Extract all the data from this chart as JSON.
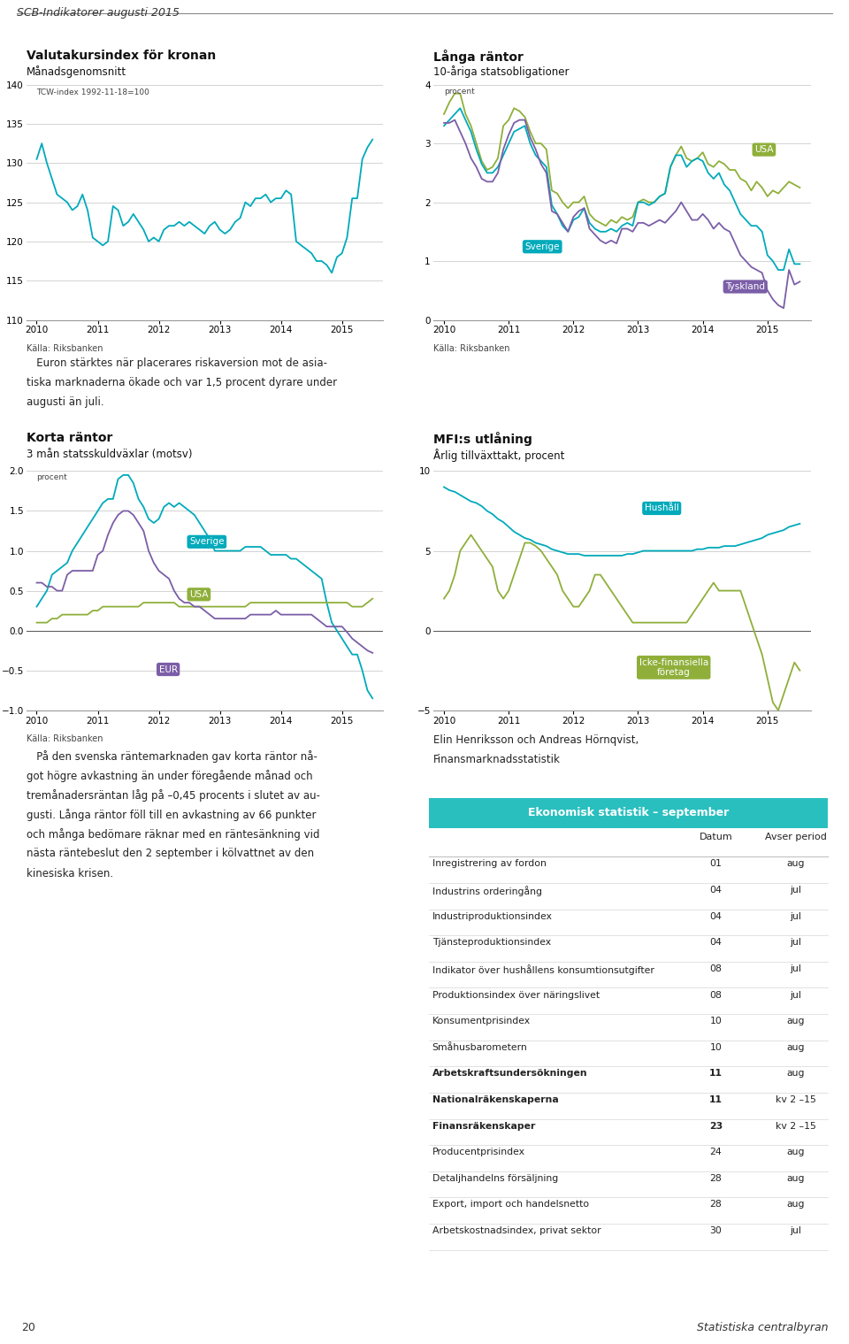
{
  "page_title": "SCB-Indikatorer augusti 2015",
  "page_num_left": "20",
  "page_num_right": "Statistiska centralbyran",
  "background_color": "#ffffff",
  "chart1": {
    "title": "Valutakursindex för kronan",
    "subtitle": "Månadsgenomsnitt",
    "ylabel_note": "TCW-index 1992-11-18=100",
    "source": "Källa: Riksbanken",
    "ylim": [
      110,
      140
    ],
    "yticks": [
      110,
      115,
      120,
      125,
      130,
      135,
      140
    ],
    "color": "#00AABB",
    "x": [
      2010.0,
      2010.083,
      2010.167,
      2010.25,
      2010.333,
      2010.417,
      2010.5,
      2010.583,
      2010.667,
      2010.75,
      2010.833,
      2010.917,
      2011.0,
      2011.083,
      2011.167,
      2011.25,
      2011.333,
      2011.417,
      2011.5,
      2011.583,
      2011.667,
      2011.75,
      2011.833,
      2011.917,
      2012.0,
      2012.083,
      2012.167,
      2012.25,
      2012.333,
      2012.417,
      2012.5,
      2012.583,
      2012.667,
      2012.75,
      2012.833,
      2012.917,
      2013.0,
      2013.083,
      2013.167,
      2013.25,
      2013.333,
      2013.417,
      2013.5,
      2013.583,
      2013.667,
      2013.75,
      2013.833,
      2013.917,
      2014.0,
      2014.083,
      2014.167,
      2014.25,
      2014.333,
      2014.417,
      2014.5,
      2014.583,
      2014.667,
      2014.75,
      2014.833,
      2014.917,
      2015.0,
      2015.083,
      2015.167,
      2015.25,
      2015.333,
      2015.417,
      2015.5
    ],
    "y": [
      130.5,
      132.5,
      130.0,
      128.0,
      126.0,
      125.5,
      125.0,
      124.0,
      124.5,
      126.0,
      124.0,
      120.5,
      120.0,
      119.5,
      120.0,
      124.5,
      124.0,
      122.0,
      122.5,
      123.5,
      122.5,
      121.5,
      120.0,
      120.5,
      120.0,
      121.5,
      122.0,
      122.0,
      122.5,
      122.0,
      122.5,
      122.0,
      121.5,
      121.0,
      122.0,
      122.5,
      121.5,
      121.0,
      121.5,
      122.5,
      123.0,
      125.0,
      124.5,
      125.5,
      125.5,
      126.0,
      125.0,
      125.5,
      125.5,
      126.5,
      126.0,
      120.0,
      119.5,
      119.0,
      118.5,
      117.5,
      117.5,
      117.0,
      116.0,
      118.0,
      118.5,
      120.5,
      125.5,
      125.5,
      130.5,
      132.0,
      133.0
    ]
  },
  "chart2": {
    "title": "Långa räntor",
    "subtitle": "10-åriga statsobligationer",
    "ylabel_note": "procent",
    "source": "Källa: Riksbanken",
    "ylim": [
      0,
      4
    ],
    "yticks": [
      0,
      1,
      2,
      3,
      4
    ],
    "colors": {
      "USA": "#8faf3a",
      "Sverige": "#00AABB",
      "Tyskland": "#7B5EA7"
    },
    "x": [
      2010.0,
      2010.083,
      2010.167,
      2010.25,
      2010.333,
      2010.417,
      2010.5,
      2010.583,
      2010.667,
      2010.75,
      2010.833,
      2010.917,
      2011.0,
      2011.083,
      2011.167,
      2011.25,
      2011.333,
      2011.417,
      2011.5,
      2011.583,
      2011.667,
      2011.75,
      2011.833,
      2011.917,
      2012.0,
      2012.083,
      2012.167,
      2012.25,
      2012.333,
      2012.417,
      2012.5,
      2012.583,
      2012.667,
      2012.75,
      2012.833,
      2012.917,
      2013.0,
      2013.083,
      2013.167,
      2013.25,
      2013.333,
      2013.417,
      2013.5,
      2013.583,
      2013.667,
      2013.75,
      2013.833,
      2013.917,
      2014.0,
      2014.083,
      2014.167,
      2014.25,
      2014.333,
      2014.417,
      2014.5,
      2014.583,
      2014.667,
      2014.75,
      2014.833,
      2014.917,
      2015.0,
      2015.083,
      2015.167,
      2015.25,
      2015.333,
      2015.417,
      2015.5
    ],
    "y_usa": [
      3.5,
      3.7,
      3.85,
      3.85,
      3.5,
      3.3,
      3.0,
      2.7,
      2.55,
      2.6,
      2.75,
      3.3,
      3.4,
      3.6,
      3.55,
      3.45,
      3.2,
      3.0,
      3.0,
      2.9,
      2.2,
      2.15,
      2.0,
      1.9,
      2.0,
      2.0,
      2.1,
      1.8,
      1.7,
      1.65,
      1.6,
      1.7,
      1.65,
      1.75,
      1.7,
      1.75,
      2.0,
      2.05,
      2.0,
      2.0,
      2.1,
      2.15,
      2.6,
      2.8,
      2.95,
      2.75,
      2.7,
      2.75,
      2.85,
      2.65,
      2.6,
      2.7,
      2.65,
      2.55,
      2.55,
      2.4,
      2.35,
      2.2,
      2.35,
      2.25,
      2.1,
      2.2,
      2.15,
      2.25,
      2.35,
      2.3,
      2.25
    ],
    "y_sve": [
      3.3,
      3.4,
      3.5,
      3.6,
      3.4,
      3.2,
      2.9,
      2.65,
      2.5,
      2.5,
      2.6,
      2.8,
      3.0,
      3.2,
      3.25,
      3.3,
      3.0,
      2.8,
      2.7,
      2.6,
      1.95,
      1.8,
      1.6,
      1.5,
      1.7,
      1.75,
      1.9,
      1.65,
      1.55,
      1.5,
      1.5,
      1.55,
      1.5,
      1.6,
      1.65,
      1.6,
      2.0,
      2.0,
      1.95,
      2.0,
      2.1,
      2.15,
      2.6,
      2.8,
      2.8,
      2.6,
      2.7,
      2.75,
      2.7,
      2.5,
      2.4,
      2.5,
      2.3,
      2.2,
      2.0,
      1.8,
      1.7,
      1.6,
      1.6,
      1.5,
      1.1,
      1.0,
      0.85,
      0.85,
      1.2,
      0.95,
      0.95
    ],
    "y_deu": [
      3.35,
      3.35,
      3.4,
      3.2,
      3.0,
      2.75,
      2.6,
      2.4,
      2.35,
      2.35,
      2.5,
      2.9,
      3.15,
      3.35,
      3.4,
      3.4,
      3.1,
      2.9,
      2.65,
      2.5,
      1.85,
      1.8,
      1.65,
      1.5,
      1.75,
      1.85,
      1.9,
      1.55,
      1.45,
      1.35,
      1.3,
      1.35,
      1.3,
      1.55,
      1.55,
      1.5,
      1.65,
      1.65,
      1.6,
      1.65,
      1.7,
      1.65,
      1.75,
      1.85,
      2.0,
      1.85,
      1.7,
      1.7,
      1.8,
      1.7,
      1.55,
      1.65,
      1.55,
      1.5,
      1.3,
      1.1,
      1.0,
      0.9,
      0.85,
      0.8,
      0.5,
      0.35,
      0.25,
      0.2,
      0.85,
      0.6,
      0.65
    ]
  },
  "text_block1": {
    "lines": [
      "   Euron stärktes när placerares riskaversion mot de asia-",
      "tiska marknaderna ökade och var 1,5 procent dyrare under",
      "augusti än juli."
    ]
  },
  "chart3": {
    "title": "Korta räntor",
    "subtitle": "3 mån statsskuldväxlar (motsv)",
    "ylabel_note": "procent",
    "source": "Källa: Riksbanken",
    "ylim": [
      -1.0,
      2.0
    ],
    "yticks": [
      -1.0,
      -0.5,
      0.0,
      0.5,
      1.0,
      1.5,
      2.0
    ],
    "colors": {
      "Sverige": "#00AABB",
      "USA": "#8faf3a",
      "EUR": "#7B5EA7"
    },
    "x": [
      2010.0,
      2010.083,
      2010.167,
      2010.25,
      2010.333,
      2010.417,
      2010.5,
      2010.583,
      2010.667,
      2010.75,
      2010.833,
      2010.917,
      2011.0,
      2011.083,
      2011.167,
      2011.25,
      2011.333,
      2011.417,
      2011.5,
      2011.583,
      2011.667,
      2011.75,
      2011.833,
      2011.917,
      2012.0,
      2012.083,
      2012.167,
      2012.25,
      2012.333,
      2012.417,
      2012.5,
      2012.583,
      2012.667,
      2012.75,
      2012.833,
      2012.917,
      2013.0,
      2013.083,
      2013.167,
      2013.25,
      2013.333,
      2013.417,
      2013.5,
      2013.583,
      2013.667,
      2013.75,
      2013.833,
      2013.917,
      2014.0,
      2014.083,
      2014.167,
      2014.25,
      2014.333,
      2014.417,
      2014.5,
      2014.583,
      2014.667,
      2014.75,
      2014.833,
      2014.917,
      2015.0,
      2015.083,
      2015.167,
      2015.25,
      2015.333,
      2015.417,
      2015.5
    ],
    "y_sve": [
      0.3,
      0.4,
      0.5,
      0.7,
      0.75,
      0.8,
      0.85,
      1.0,
      1.1,
      1.2,
      1.3,
      1.4,
      1.5,
      1.6,
      1.65,
      1.65,
      1.9,
      1.95,
      1.95,
      1.85,
      1.65,
      1.55,
      1.4,
      1.35,
      1.4,
      1.55,
      1.6,
      1.55,
      1.6,
      1.55,
      1.5,
      1.45,
      1.35,
      1.25,
      1.15,
      1.0,
      1.0,
      1.0,
      1.0,
      1.0,
      1.0,
      1.05,
      1.05,
      1.05,
      1.05,
      1.0,
      0.95,
      0.95,
      0.95,
      0.95,
      0.9,
      0.9,
      0.85,
      0.8,
      0.75,
      0.7,
      0.65,
      0.35,
      0.1,
      0.0,
      -0.1,
      -0.2,
      -0.3,
      -0.3,
      -0.5,
      -0.75,
      -0.85
    ],
    "y_usa": [
      0.1,
      0.1,
      0.1,
      0.15,
      0.15,
      0.2,
      0.2,
      0.2,
      0.2,
      0.2,
      0.2,
      0.25,
      0.25,
      0.3,
      0.3,
      0.3,
      0.3,
      0.3,
      0.3,
      0.3,
      0.3,
      0.35,
      0.35,
      0.35,
      0.35,
      0.35,
      0.35,
      0.35,
      0.3,
      0.3,
      0.3,
      0.3,
      0.3,
      0.3,
      0.3,
      0.3,
      0.3,
      0.3,
      0.3,
      0.3,
      0.3,
      0.3,
      0.35,
      0.35,
      0.35,
      0.35,
      0.35,
      0.35,
      0.35,
      0.35,
      0.35,
      0.35,
      0.35,
      0.35,
      0.35,
      0.35,
      0.35,
      0.35,
      0.35,
      0.35,
      0.35,
      0.35,
      0.3,
      0.3,
      0.3,
      0.35,
      0.4
    ],
    "y_eur": [
      0.6,
      0.6,
      0.55,
      0.55,
      0.5,
      0.5,
      0.7,
      0.75,
      0.75,
      0.75,
      0.75,
      0.75,
      0.95,
      1.0,
      1.2,
      1.35,
      1.45,
      1.5,
      1.5,
      1.45,
      1.35,
      1.25,
      1.0,
      0.85,
      0.75,
      0.7,
      0.65,
      0.5,
      0.4,
      0.35,
      0.35,
      0.3,
      0.3,
      0.25,
      0.2,
      0.15,
      0.15,
      0.15,
      0.15,
      0.15,
      0.15,
      0.15,
      0.2,
      0.2,
      0.2,
      0.2,
      0.2,
      0.25,
      0.2,
      0.2,
      0.2,
      0.2,
      0.2,
      0.2,
      0.2,
      0.15,
      0.1,
      0.05,
      0.05,
      0.05,
      0.05,
      -0.02,
      -0.1,
      -0.15,
      -0.2,
      -0.25,
      -0.28
    ]
  },
  "chart4": {
    "title": "MFI:s utlåning",
    "subtitle": "Årlig tillväxttakt, procent",
    "ylim": [
      -5,
      10
    ],
    "yticks": [
      -5,
      0,
      5,
      10
    ],
    "colors": {
      "Hushall": "#00AABB",
      "foretag": "#8faf3a"
    },
    "x": [
      2010.0,
      2010.083,
      2010.167,
      2010.25,
      2010.333,
      2010.417,
      2010.5,
      2010.583,
      2010.667,
      2010.75,
      2010.833,
      2010.917,
      2011.0,
      2011.083,
      2011.167,
      2011.25,
      2011.333,
      2011.417,
      2011.5,
      2011.583,
      2011.667,
      2011.75,
      2011.833,
      2011.917,
      2012.0,
      2012.083,
      2012.167,
      2012.25,
      2012.333,
      2012.417,
      2012.5,
      2012.583,
      2012.667,
      2012.75,
      2012.833,
      2012.917,
      2013.0,
      2013.083,
      2013.167,
      2013.25,
      2013.333,
      2013.417,
      2013.5,
      2013.583,
      2013.667,
      2013.75,
      2013.833,
      2013.917,
      2014.0,
      2014.083,
      2014.167,
      2014.25,
      2014.333,
      2014.417,
      2014.5,
      2014.583,
      2014.667,
      2014.75,
      2014.833,
      2014.917,
      2015.0,
      2015.083,
      2015.167,
      2015.25,
      2015.333,
      2015.417,
      2015.5
    ],
    "y_hushall": [
      9.0,
      8.8,
      8.7,
      8.5,
      8.3,
      8.1,
      8.0,
      7.8,
      7.5,
      7.3,
      7.0,
      6.8,
      6.5,
      6.2,
      6.0,
      5.8,
      5.7,
      5.5,
      5.4,
      5.3,
      5.1,
      5.0,
      4.9,
      4.8,
      4.8,
      4.8,
      4.7,
      4.7,
      4.7,
      4.7,
      4.7,
      4.7,
      4.7,
      4.7,
      4.8,
      4.8,
      4.9,
      5.0,
      5.0,
      5.0,
      5.0,
      5.0,
      5.0,
      5.0,
      5.0,
      5.0,
      5.0,
      5.1,
      5.1,
      5.2,
      5.2,
      5.2,
      5.3,
      5.3,
      5.3,
      5.4,
      5.5,
      5.6,
      5.7,
      5.8,
      6.0,
      6.1,
      6.2,
      6.3,
      6.5,
      6.6,
      6.7
    ],
    "y_foretag": [
      2.0,
      2.5,
      3.5,
      5.0,
      5.5,
      6.0,
      5.5,
      5.0,
      4.5,
      4.0,
      2.5,
      2.0,
      2.5,
      3.5,
      4.5,
      5.5,
      5.5,
      5.3,
      5.0,
      4.5,
      4.0,
      3.5,
      2.5,
      2.0,
      1.5,
      1.5,
      2.0,
      2.5,
      3.5,
      3.5,
      3.0,
      2.5,
      2.0,
      1.5,
      1.0,
      0.5,
      0.5,
      0.5,
      0.5,
      0.5,
      0.5,
      0.5,
      0.5,
      0.5,
      0.5,
      0.5,
      1.0,
      1.5,
      2.0,
      2.5,
      3.0,
      2.5,
      2.5,
      2.5,
      2.5,
      2.5,
      1.5,
      0.5,
      -0.5,
      -1.5,
      -3.0,
      -4.5,
      -5.0,
      -4.0,
      -3.0,
      -2.0,
      -2.5
    ]
  },
  "text_block2": {
    "lines": [
      "   På den svenska räntemarknaden gav korta räntor nå-",
      "got högre avkastning än under föregående månad och",
      "tremånadersräntan låg på –0,45 procents i slutet av au-",
      "gusti. Långa räntor föll till en avkastning av 66 punkter",
      "och många bedömare räknar med en räntesänkning vid",
      "nästa räntebeslut den 2 september i kölvattnet av den",
      "kinesiska krisen."
    ]
  },
  "author": "Elin Henriksson och Andreas Hörnqvist,\nFinansmarknadsstatistik",
  "table": {
    "header": "Ekonomisk statistik – september",
    "header_bg": "#29BFBF",
    "header_color": "#ffffff",
    "col_headers": [
      "",
      "Datum",
      "Avser period"
    ],
    "bold_rows": [
      8,
      9,
      10
    ],
    "rows": [
      [
        "Inregistrering av fordon",
        "01",
        "aug"
      ],
      [
        "Industrins orderingång",
        "04",
        "jul"
      ],
      [
        "Industriproduktionsindex",
        "04",
        "jul"
      ],
      [
        "Tjänsteproduktionsindex",
        "04",
        "jul"
      ],
      [
        "Indikator över hushållens konsumtionsutgifter",
        "08",
        "jul"
      ],
      [
        "Produktionsindex över näringslivet",
        "08",
        "jul"
      ],
      [
        "Konsumentprisindex",
        "10",
        "aug"
      ],
      [
        "Småhusbarometern",
        "10",
        "aug"
      ],
      [
        "Arbetskraftsundersökningen",
        "11",
        "aug"
      ],
      [
        "Nationalräkenskaperna",
        "11",
        "kv 2 –15"
      ],
      [
        "Finansräkenskaper",
        "23",
        "kv 2 –15"
      ],
      [
        "Producentprisindex",
        "24",
        "aug"
      ],
      [
        "Detaljhandelns försäljning",
        "28",
        "aug"
      ],
      [
        "Export, import och handelsnetto",
        "28",
        "aug"
      ],
      [
        "Arbetskostnadsindex, privat sektor",
        "30",
        "jul"
      ]
    ]
  }
}
